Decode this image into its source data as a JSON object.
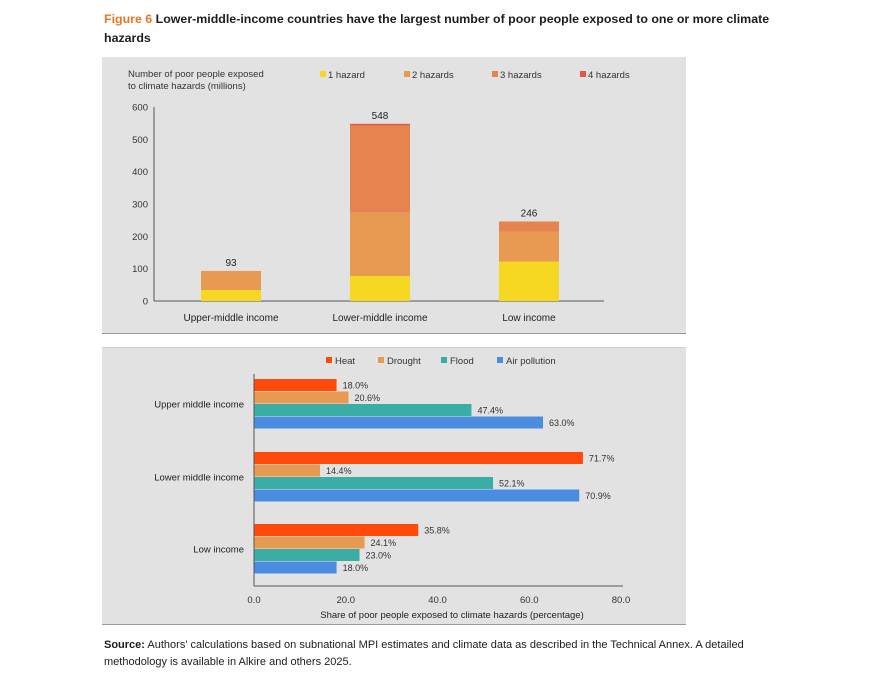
{
  "figure": {
    "label": "Figure 6",
    "title": "Lower-middle-income countries have the largest number of poor people exposed to one or more climate hazards"
  },
  "source": {
    "label": "Source:",
    "text": "Authors' calculations based on subnational MPI estimates and climate data as described in the Technical Annex. A detailed methodology is available in Alkire and others 2025."
  },
  "chart_data": [
    {
      "type": "bar",
      "stacked": true,
      "orientation": "vertical",
      "ylabel_lines": [
        "Number of poor people exposed",
        "to climate hazards (millions)"
      ],
      "xlabel": "",
      "ylim": [
        0,
        600
      ],
      "yticks": [
        0,
        100,
        200,
        300,
        400,
        500,
        600
      ],
      "categories": [
        "Upper-middle income",
        "Lower-middle income",
        "Low income"
      ],
      "series": [
        {
          "name": "1 hazard",
          "color": "#f6d823",
          "values": [
            34,
            77,
            122
          ]
        },
        {
          "name": "2 hazards",
          "color": "#e89a52",
          "values": [
            59,
            196,
            92
          ]
        },
        {
          "name": "3 hazards",
          "color": "#e6844f",
          "values": [
            0,
            270,
            32
          ]
        },
        {
          "name": "4 hazards",
          "color": "#df5a44",
          "values": [
            0,
            5,
            0
          ]
        }
      ],
      "totals": [
        "93",
        "548",
        "246"
      ],
      "legend": "top",
      "grid": false
    },
    {
      "type": "bar",
      "orientation": "horizontal",
      "xlabel": "Share of poor people exposed to climate hazards (percentage)",
      "ylabel": "",
      "xlim": [
        0,
        80
      ],
      "xticks": [
        "0.0",
        "20.0",
        "40.0",
        "60.0",
        "80.0"
      ],
      "xtick_values": [
        0,
        20,
        40,
        60,
        80
      ],
      "categories": [
        "Upper middle income",
        "Lower middle income",
        "Low income"
      ],
      "series": [
        {
          "name": "Heat",
          "color": "#ff4a0b",
          "values": [
            18.0,
            71.7,
            35.8
          ],
          "labels": [
            "18.0%",
            "71.7%",
            "35.8%"
          ]
        },
        {
          "name": "Drought",
          "color": "#e99a52",
          "values": [
            20.6,
            14.4,
            24.1
          ],
          "labels": [
            "20.6%",
            "14.4%",
            "24.1%"
          ]
        },
        {
          "name": "Flood",
          "color": "#3aaea4",
          "values": [
            47.4,
            52.1,
            23.0
          ],
          "labels": [
            "47.4%",
            "52.1%",
            "23.0%"
          ]
        },
        {
          "name": "Air pollution",
          "color": "#4a8de0",
          "values": [
            63.0,
            70.9,
            18.0
          ],
          "labels": [
            "63.0%",
            "70.9%",
            "18.0%"
          ]
        }
      ],
      "legend": "top",
      "grid": false
    }
  ]
}
